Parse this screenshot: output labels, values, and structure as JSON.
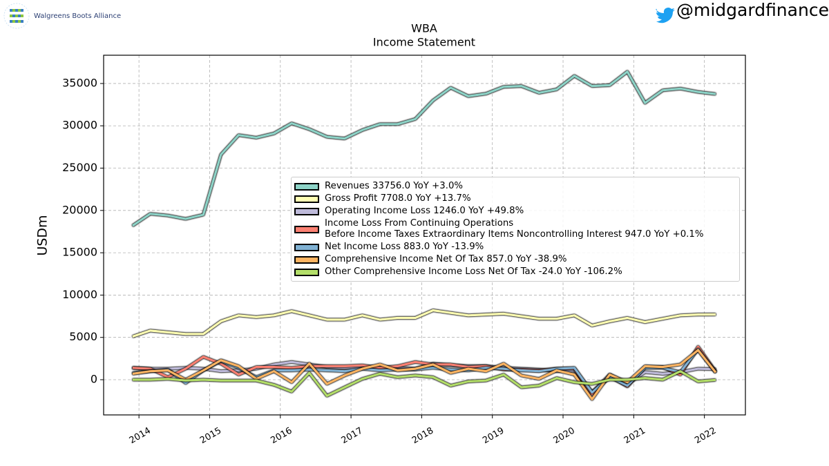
{
  "header": {
    "logo_text": "Walgreens Boots Alliance",
    "handle": "@midgardfinance"
  },
  "chart_data": {
    "type": "line",
    "title": "WBA",
    "subtitle": "Income Statement",
    "y_label": "USDm",
    "x": [
      2013.91,
      2014.16,
      2014.41,
      2014.66,
      2014.91,
      2015.16,
      2015.41,
      2015.66,
      2015.91,
      2016.16,
      2016.41,
      2016.66,
      2016.91,
      2017.16,
      2017.41,
      2017.66,
      2017.91,
      2018.16,
      2018.41,
      2018.66,
      2018.91,
      2019.16,
      2019.41,
      2019.66,
      2019.91,
      2020.16,
      2020.41,
      2020.66,
      2020.91,
      2021.16,
      2021.41,
      2021.66,
      2021.91,
      2022.16
    ],
    "xlim": [
      2013.5,
      2022.58
    ],
    "xticks": [
      2014,
      2015,
      2016,
      2017,
      2018,
      2019,
      2020,
      2021,
      2022
    ],
    "ylim": [
      -4160,
      38340
    ],
    "yticks": [
      0,
      5000,
      10000,
      15000,
      20000,
      25000,
      30000,
      35000
    ],
    "grid": true,
    "series": [
      {
        "name": "Revenues 33756.0 YoY +3.0%",
        "color": "#8dd3c7",
        "values": [
          18200,
          19600,
          19400,
          19000,
          19500,
          26600,
          28900,
          28600,
          29100,
          30300,
          29600,
          28700,
          28500,
          29500,
          30200,
          30200,
          30800,
          33000,
          34500,
          33500,
          33800,
          34600,
          34700,
          33900,
          34300,
          35900,
          34700,
          34800,
          36400,
          32700,
          34200,
          34400,
          34000,
          33756
        ]
      },
      {
        "name": "Gross Profit 7708.0 YoY +13.7%",
        "color": "#ffffb3",
        "values": [
          5100,
          5800,
          5600,
          5400,
          5400,
          6900,
          7600,
          7400,
          7600,
          8100,
          7600,
          7100,
          7100,
          7600,
          7100,
          7300,
          7300,
          8200,
          7900,
          7600,
          7700,
          7800,
          7500,
          7200,
          7200,
          7600,
          6400,
          6900,
          7300,
          6800,
          7200,
          7600,
          7700,
          7708
        ]
      },
      {
        "name": "Operating Income Loss 1246.0 YoY +49.8%",
        "color": "#bebada",
        "values": [
          1400,
          1300,
          1300,
          1400,
          1300,
          1000,
          1100,
          1300,
          1800,
          2100,
          1800,
          1500,
          1400,
          1500,
          1500,
          1400,
          1300,
          1900,
          1700,
          1600,
          1600,
          1400,
          1300,
          1200,
          1000,
          1100,
          -1500,
          600,
          -500,
          900,
          700,
          900,
          1300,
          1246
        ]
      },
      {
        "name": "Income Loss From Continuing Operations\nBefore Income Taxes Extraordinary Items Noncontrolling Interest 947.0 YoY +0.1%",
        "color": "#fb8072",
        "values": [
          1400,
          1300,
          300,
          1300,
          2700,
          1900,
          600,
          1500,
          1500,
          1400,
          1600,
          1600,
          1600,
          1700,
          1400,
          1600,
          2100,
          1800,
          1800,
          1500,
          1600,
          1200,
          1200,
          1100,
          1300,
          1300,
          -1700,
          400,
          -800,
          1500,
          1500,
          600,
          3900,
          947
        ]
      },
      {
        "name": "Net Income Loss 883.0 YoY -13.9%",
        "color": "#80b1d3",
        "values": [
          800,
          1000,
          1200,
          -400,
          1100,
          2200,
          1400,
          300,
          1100,
          1100,
          1200,
          1100,
          1000,
          1300,
          1100,
          1200,
          1200,
          1400,
          1200,
          1100,
          1400,
          1300,
          1100,
          1000,
          1300,
          1400,
          -1500,
          300,
          -700,
          1400,
          1400,
          900,
          3600,
          883
        ]
      },
      {
        "name": "Comprehensive Income Net Of Tax 857.0 YoY -38.9%",
        "color": "#fdb462",
        "values": [
          700,
          1000,
          1100,
          0,
          1100,
          2300,
          1600,
          100,
          1000,
          -300,
          1900,
          -500,
          500,
          1300,
          1800,
          1100,
          1300,
          1800,
          800,
          1300,
          1000,
          1900,
          500,
          100,
          1100,
          600,
          -2300,
          600,
          -300,
          1600,
          1500,
          1800,
          3500,
          857
        ]
      },
      {
        "name": "Other Comprehensive Income Loss Net Of Tax -24.0 YoY -106.2%",
        "color": "#b3de69",
        "values": [
          0,
          0,
          100,
          -100,
          0,
          -100,
          -100,
          -100,
          -600,
          -1400,
          800,
          -1900,
          -900,
          100,
          700,
          300,
          500,
          300,
          -700,
          -200,
          -100,
          600,
          -900,
          -700,
          200,
          -300,
          -500,
          0,
          0,
          200,
          0,
          1000,
          -200,
          -24
        ]
      }
    ]
  }
}
